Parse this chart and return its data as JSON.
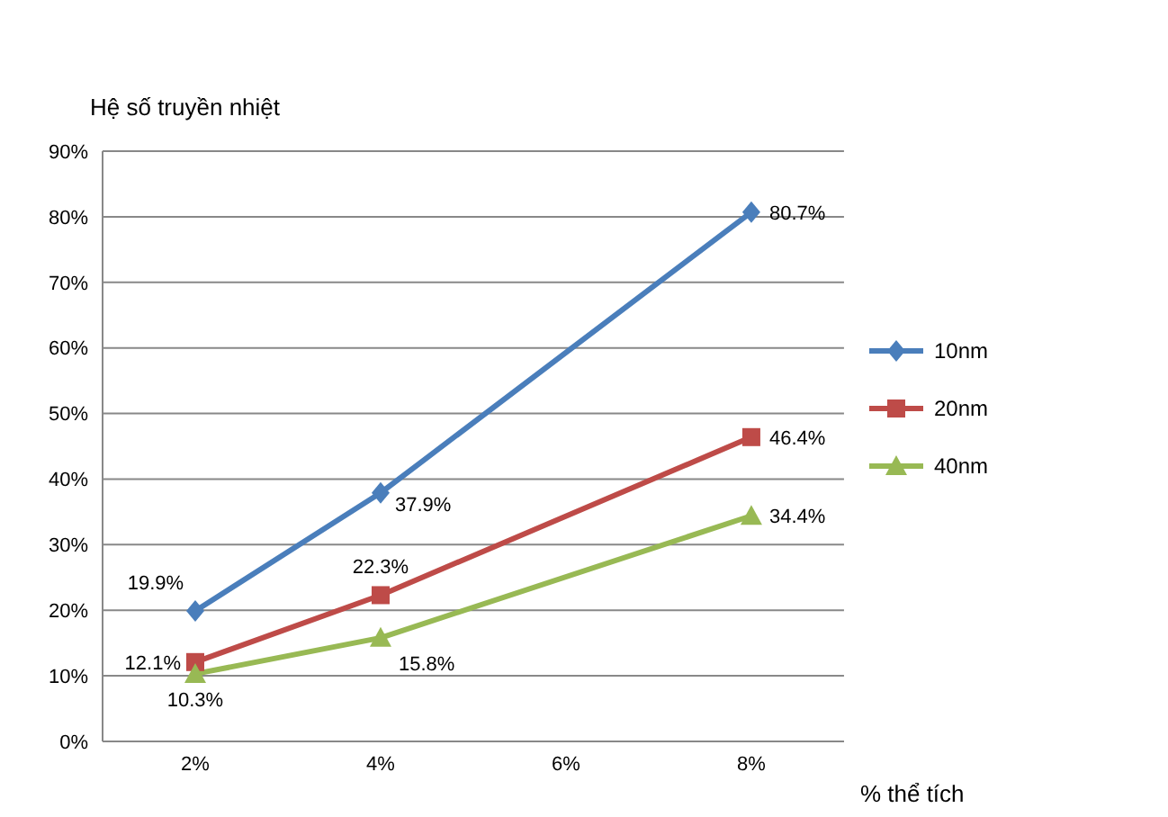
{
  "chart_data": {
    "type": "line",
    "ylabel": "Hệ số truyền nhiệt",
    "xlabel": "% thể tích",
    "x": [
      2,
      4,
      8
    ],
    "xlim": [
      1,
      9
    ],
    "xticks": [
      {
        "value": 2,
        "label": "2%"
      },
      {
        "value": 4,
        "label": "4%"
      },
      {
        "value": 6,
        "label": "6%"
      },
      {
        "value": 8,
        "label": "8%"
      }
    ],
    "ylim": [
      0,
      90
    ],
    "yticks": [
      {
        "value": 0,
        "label": "0%"
      },
      {
        "value": 10,
        "label": "10%"
      },
      {
        "value": 20,
        "label": "20%"
      },
      {
        "value": 30,
        "label": "30%"
      },
      {
        "value": 40,
        "label": "40%"
      },
      {
        "value": 50,
        "label": "50%"
      },
      {
        "value": 60,
        "label": "60%"
      },
      {
        "value": 70,
        "label": "70%"
      },
      {
        "value": 80,
        "label": "80%"
      },
      {
        "value": 90,
        "label": "90%"
      }
    ],
    "grid": "y",
    "legend": "right",
    "series": [
      {
        "name": "10nm",
        "color": "#4a7ebb",
        "marker": "diamond",
        "values": [
          19.9,
          37.9,
          80.7
        ],
        "value_labels": [
          "19.9%",
          "37.9%",
          "80.7%"
        ]
      },
      {
        "name": "20nm",
        "color": "#be4b48",
        "marker": "square",
        "values": [
          12.1,
          22.3,
          46.4
        ],
        "value_labels": [
          "12.1%",
          "22.3%",
          "46.4%"
        ]
      },
      {
        "name": "40nm",
        "color": "#98b954",
        "marker": "triangle",
        "values": [
          10.3,
          15.8,
          34.4
        ],
        "value_labels": [
          "10.3%",
          "15.8%",
          "34.4%"
        ]
      }
    ]
  }
}
